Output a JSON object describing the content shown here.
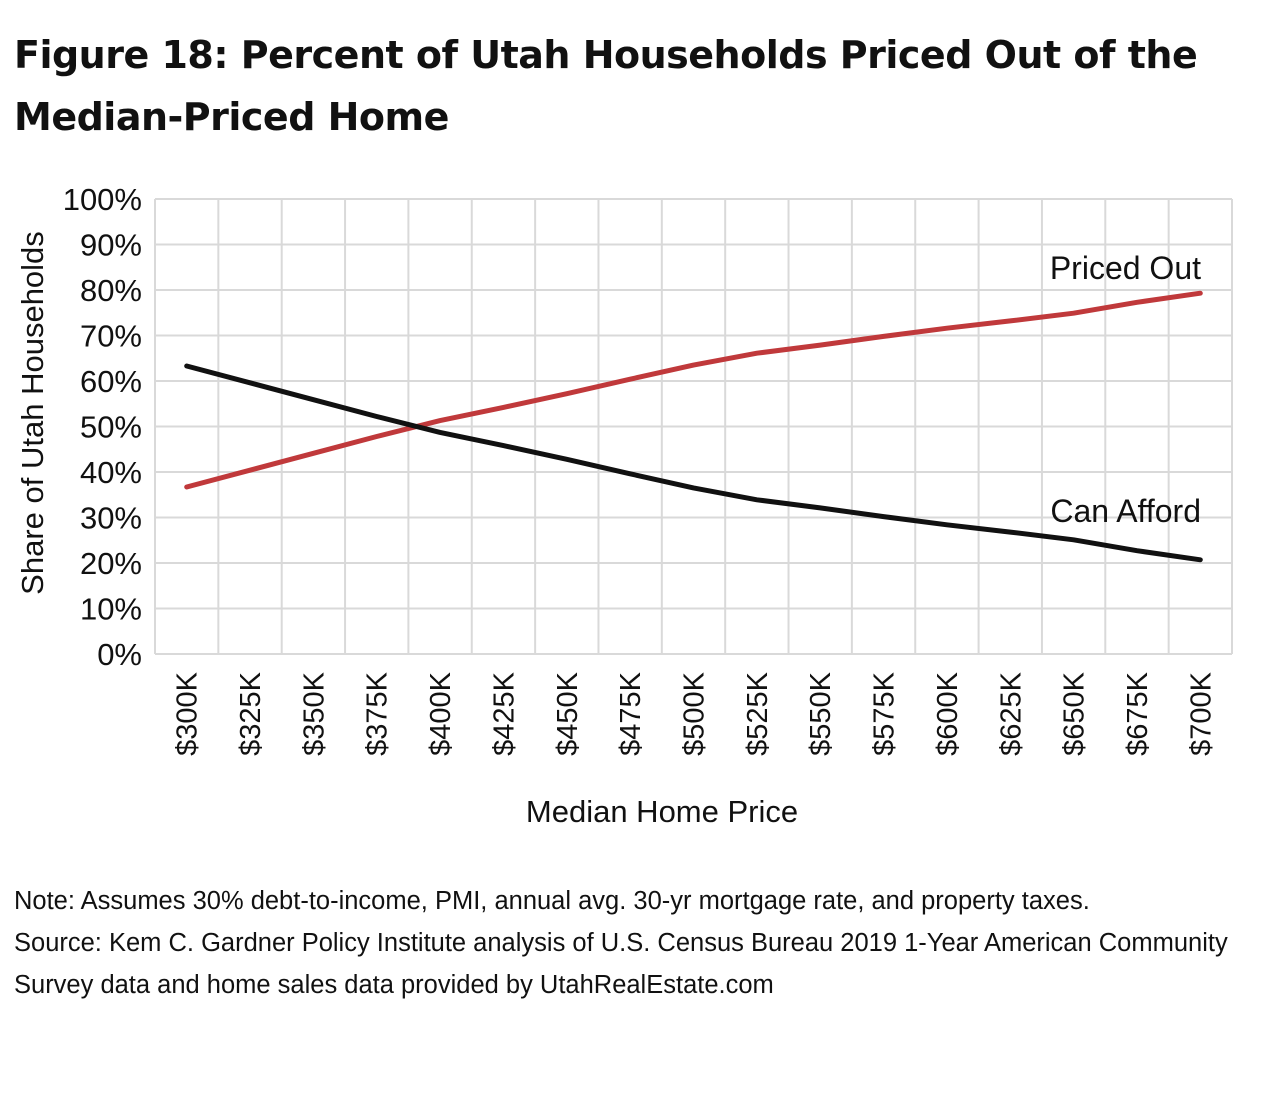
{
  "title": "Figure 18: Percent of Utah Households Priced Out of the Median-Priced Home",
  "note": "Note: Assumes 30% debt-to-income, PMI, annual avg. 30-yr mortgage rate, and property taxes.",
  "source": "Source: Kem C. Gardner Policy Institute analysis of U.S. Census Bureau 2019 1-Year American Community Survey data and home sales data provided by UtahRealEstate.com",
  "chart_data": {
    "type": "line",
    "xlabel": "Median Home Price",
    "ylabel": "Share of Utah Households",
    "categories": [
      "$300K",
      "$325K",
      "$350K",
      "$375K",
      "$400K",
      "$425K",
      "$450K",
      "$475K",
      "$500K",
      "$525K",
      "$550K",
      "$575K",
      "$600K",
      "$625K",
      "$650K",
      "$675K",
      "$700K"
    ],
    "y_ticks": [
      "0%",
      "10%",
      "20%",
      "30%",
      "40%",
      "50%",
      "60%",
      "70%",
      "80%",
      "90%",
      "100%"
    ],
    "ylim": [
      0,
      100
    ],
    "grid": true,
    "series": [
      {
        "name": "Priced Out",
        "color": "#c0393b",
        "values": [
          36.7,
          40.4,
          44.1,
          47.8,
          51.3,
          54.2,
          57.2,
          60.4,
          63.5,
          66.1,
          67.9,
          69.8,
          71.6,
          73.2,
          74.9,
          77.3,
          79.3
        ]
      },
      {
        "name": "Can Afford",
        "color": "#111111",
        "values": [
          63.3,
          59.6,
          55.9,
          52.2,
          48.7,
          45.8,
          42.8,
          39.6,
          36.5,
          33.9,
          32.1,
          30.2,
          28.4,
          26.8,
          25.1,
          22.7,
          20.7
        ]
      }
    ]
  }
}
